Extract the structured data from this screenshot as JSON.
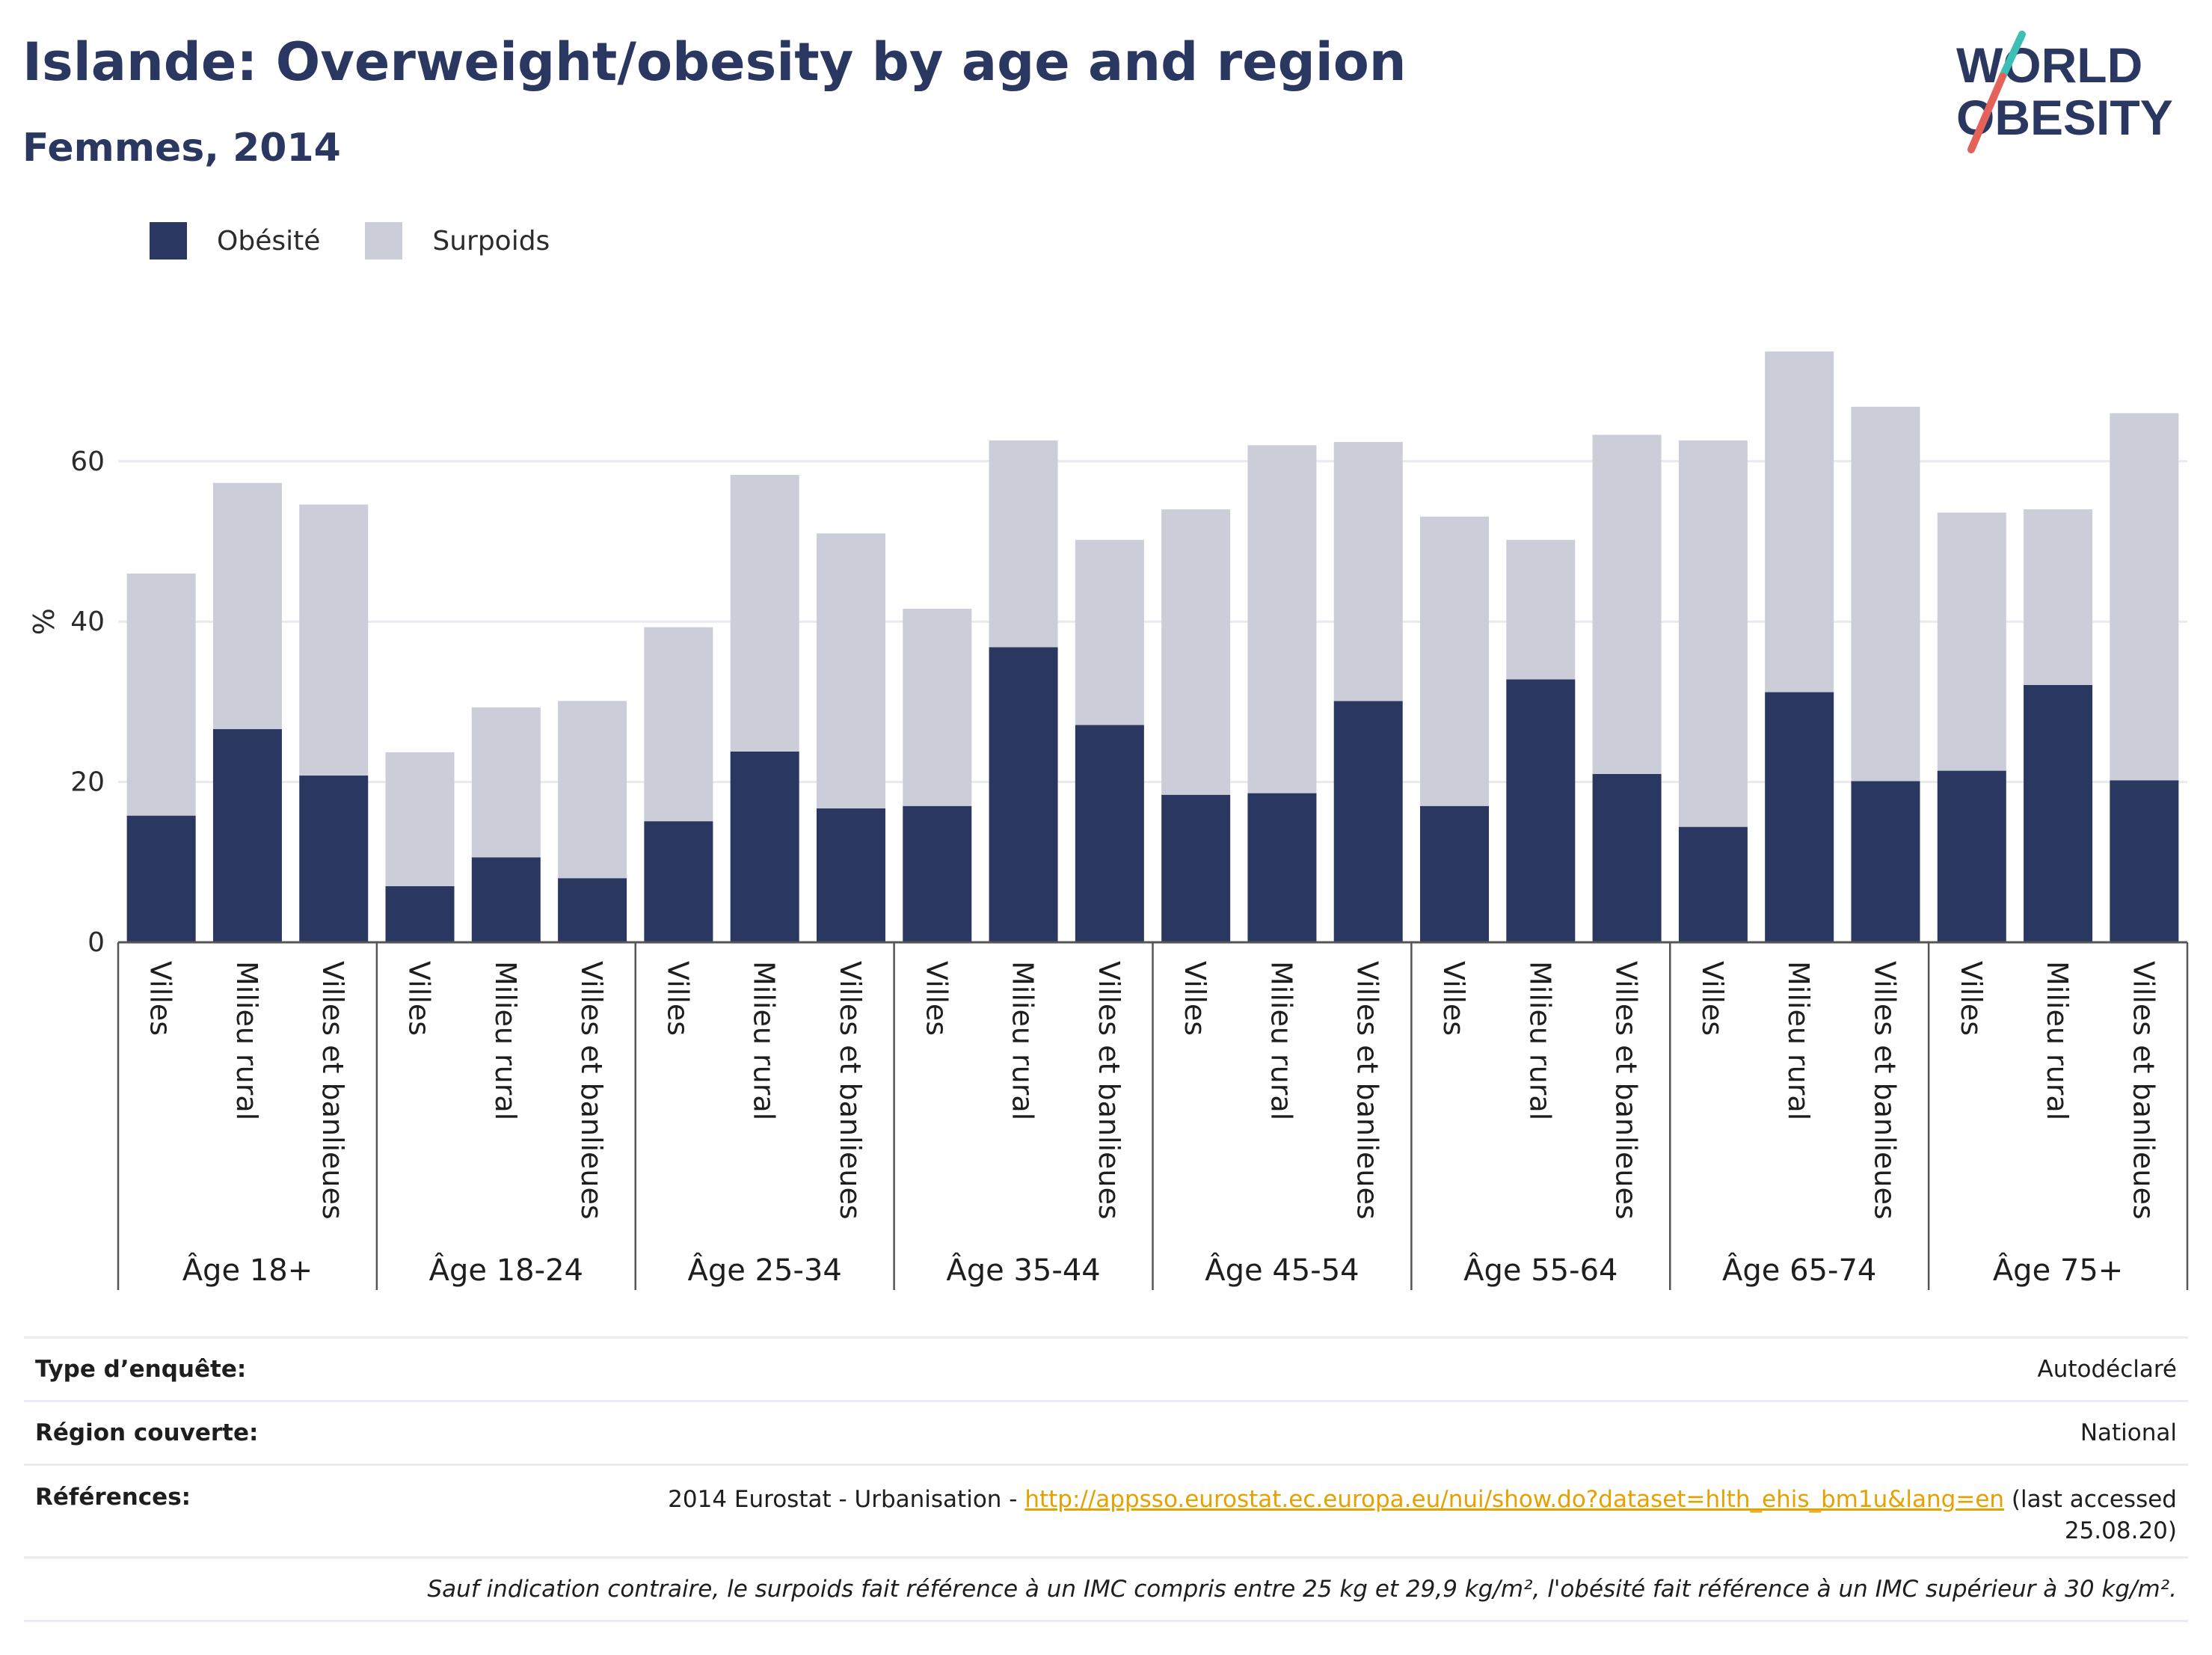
{
  "title": "Islande: Overweight/obesity by age and region",
  "subtitle": "Femmes, 2014",
  "logo": {
    "line1": "WORLD",
    "line2": "OBESITY"
  },
  "legend": [
    {
      "label": "Obésité",
      "color": "#2a3760"
    },
    {
      "label": "Surpoids",
      "color": "#cbcdd8"
    }
  ],
  "chart_data": {
    "type": "bar",
    "stacked": true,
    "ylabel": "%",
    "ylim": [
      0,
      80
    ],
    "yticks": [
      0,
      20,
      40,
      60
    ],
    "grid": true,
    "legend_position": "top-left",
    "groups": [
      {
        "label": "Âge 18+",
        "categories": [
          "Villes",
          "Milieu rural",
          "Villes et banlieues"
        ]
      },
      {
        "label": "Âge 18-24",
        "categories": [
          "Villes",
          "Milieu rural",
          "Villes et banlieues"
        ]
      },
      {
        "label": "Âge 25-34",
        "categories": [
          "Villes",
          "Milieu rural",
          "Villes et banlieues"
        ]
      },
      {
        "label": "Âge 35-44",
        "categories": [
          "Villes",
          "Milieu rural",
          "Villes et banlieues"
        ]
      },
      {
        "label": "Âge 45-54",
        "categories": [
          "Villes",
          "Milieu rural",
          "Villes et banlieues"
        ]
      },
      {
        "label": "Âge 55-64",
        "categories": [
          "Villes",
          "Milieu rural",
          "Villes et banlieues"
        ]
      },
      {
        "label": "Âge 65-74",
        "categories": [
          "Villes",
          "Milieu rural",
          "Villes et banlieues"
        ]
      },
      {
        "label": "Âge 75+",
        "categories": [
          "Villes",
          "Milieu rural",
          "Villes et banlieues"
        ]
      }
    ],
    "series": [
      {
        "name": "Obésité",
        "color": "#2a3760",
        "values": [
          15.8,
          26.6,
          20.8,
          7.0,
          10.6,
          8.0,
          15.1,
          23.8,
          16.7,
          17.0,
          36.8,
          27.1,
          18.4,
          18.6,
          30.1,
          17.0,
          32.8,
          21.0,
          14.4,
          31.2,
          20.1,
          21.4,
          32.1,
          20.2
        ]
      },
      {
        "name": "Surpoids",
        "color": "#cbcdd8",
        "values": [
          30.2,
          30.7,
          33.8,
          16.7,
          18.7,
          22.1,
          24.2,
          34.5,
          34.3,
          24.6,
          25.8,
          23.1,
          35.6,
          43.4,
          32.3,
          36.1,
          17.4,
          42.3,
          48.2,
          42.5,
          46.7,
          32.2,
          21.9,
          45.8
        ]
      }
    ]
  },
  "info": {
    "survey_label": "Type d’enquête:",
    "survey_value": "Autodéclaré",
    "region_label": "Région couverte:",
    "region_value": "National",
    "refs_label": "Références:",
    "refs_prefix": "2014 Eurostat - Urbanisation - ",
    "refs_link": "http://appsso.eurostat.ec.europa.eu/nui/show.do?dataset=hlth_ehis_bm1u&lang=en",
    "refs_suffix": " (last accessed 25.08.20)",
    "note": "Sauf indication contraire, le surpoids fait référence à un IMC compris entre 25 kg et 29,9 kg/m², l'obésité fait référence à un IMC supérieur à 30 kg/m²."
  }
}
